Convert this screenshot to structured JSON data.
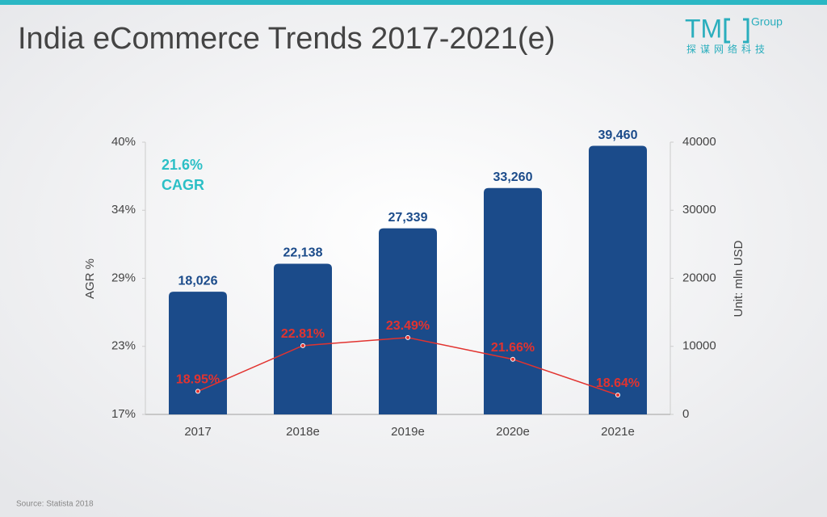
{
  "logo": {
    "mark": "TM",
    "group": "Group",
    "subtitle": "探谋网络科技"
  },
  "source": "Source: Statista 2018",
  "chart_data": {
    "type": "bar",
    "title": "India eCommerce Trends 2017-2021(e)",
    "annotation": [
      "21.6%",
      "CAGR"
    ],
    "ylabel": "AGR %",
    "y2label": "Unit: mln USD",
    "categories": [
      "2017",
      "2018e",
      "2019e",
      "2020e",
      "2021e"
    ],
    "series": [
      {
        "type": "bar",
        "axis": "y2",
        "color": "#1b4b8a",
        "values": [
          18026,
          22138,
          27339,
          33260,
          39460
        ],
        "value_labels": [
          "18,026",
          "22,138",
          "27,339",
          "33,260",
          "39,460"
        ]
      },
      {
        "type": "line",
        "color": "#e2332f",
        "values": [
          18.95,
          22.81,
          23.49,
          21.66,
          18.64
        ],
        "value_labels": [
          "18.95%",
          "22.81%",
          "23.49%",
          "21.66%",
          "18.64%"
        ]
      }
    ],
    "ylim": [
      17,
      40
    ],
    "yticks": [
      {
        "value": 17,
        "label": "17%"
      },
      {
        "value": 22.75,
        "label": "23%"
      },
      {
        "value": 28.5,
        "label": "29%"
      },
      {
        "value": 34.25,
        "label": "34%"
      },
      {
        "value": 40,
        "label": "40%"
      }
    ],
    "y2lim": [
      0,
      40000
    ],
    "y2ticks": [
      0,
      10000,
      20000,
      30000,
      40000
    ],
    "grid": false
  }
}
